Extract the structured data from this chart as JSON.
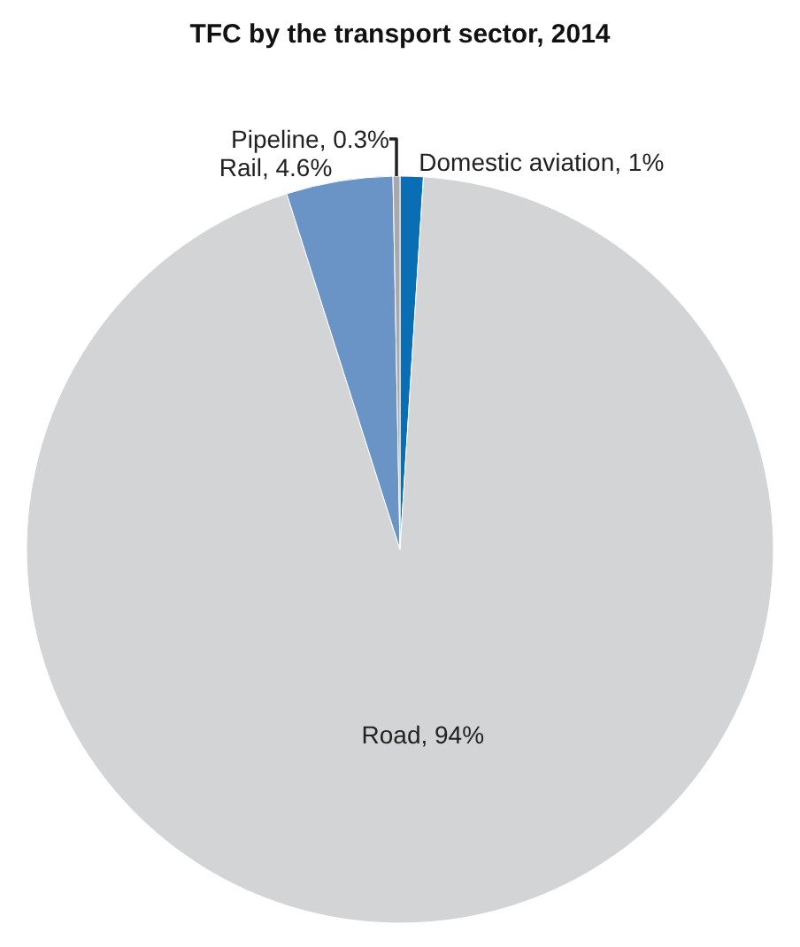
{
  "chart_data": {
    "type": "pie",
    "title": "TFC by the transport sector, 2014",
    "categories": [
      "Domestic aviation",
      "Road",
      "Rail",
      "Pipeline"
    ],
    "values": [
      1,
      94,
      4.6,
      0.3
    ],
    "value_labels": [
      "1%",
      "94%",
      "4.6%",
      "0.3%"
    ],
    "colors": [
      "#0a6eb4",
      "#d3d4d6",
      "#6a93c6",
      "#a7a9ac"
    ],
    "legend": false
  }
}
